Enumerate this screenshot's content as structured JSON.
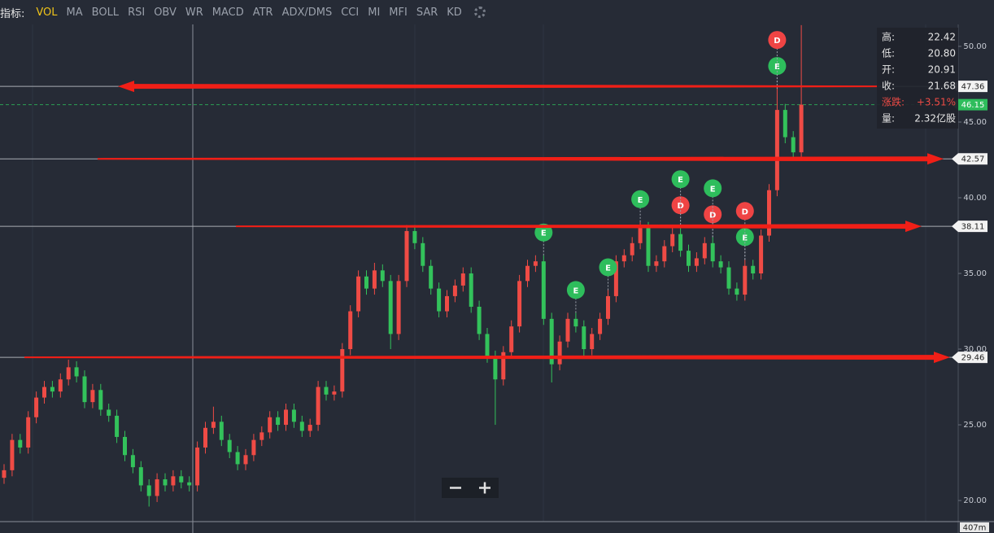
{
  "toolbar": {
    "label": "指标:",
    "indicators": [
      "VOL",
      "MA",
      "BOLL",
      "RSI",
      "OBV",
      "WR",
      "MACD",
      "ATR",
      "ADX/DMS",
      "CCI",
      "MI",
      "MFI",
      "SAR",
      "KD"
    ]
  },
  "chart_data": {
    "type": "candlestick",
    "ylim": [
      18.66,
      51.45
    ],
    "yticks": [
      {
        "value": 20,
        "label": "20.00"
      },
      {
        "value": 25,
        "label": "25.00"
      },
      {
        "value": 30,
        "label": "30.00"
      },
      {
        "value": 35,
        "label": "35.00"
      },
      {
        "value": 40,
        "label": "40.00"
      },
      {
        "value": 45,
        "label": "45.00"
      },
      {
        "value": 50,
        "label": "50.00"
      }
    ],
    "up_color": "#ef4b45",
    "down_color": "#33c25b",
    "candles": {
      "open": [
        21.5,
        22.0,
        24.0,
        23.5,
        25.5,
        26.8,
        27.5,
        27.2,
        28.0,
        28.8,
        28.2,
        26.5,
        27.3,
        26.0,
        25.6,
        24.2,
        23.0,
        22.2,
        21.0,
        20.3,
        21.4,
        21.0,
        21.6,
        21.2,
        21.0,
        23.5,
        24.8,
        25.2,
        24.0,
        23.2,
        22.4,
        23.0,
        24.0,
        24.5,
        25.5,
        25.0,
        26.0,
        25.2,
        24.6,
        25.0,
        27.5,
        27.0,
        27.2,
        30.0,
        32.5,
        34.8,
        34.0,
        35.2,
        34.5,
        31.0,
        34.5,
        37.8,
        37.0,
        35.5,
        34.0,
        32.5,
        33.5,
        34.2,
        35.0,
        32.8,
        31.0,
        29.5,
        28.0,
        29.8,
        31.5,
        34.5,
        35.5,
        35.8,
        32.0,
        29.0,
        30.5,
        32.0,
        31.5,
        30.0,
        31.0,
        32.0,
        33.5,
        35.8,
        36.2,
        37.0,
        38.0,
        35.5,
        35.8,
        36.8,
        37.6,
        36.5,
        35.5,
        36.0,
        37.0,
        35.8,
        35.4,
        34.0,
        33.6,
        35.5,
        35.0,
        37.5,
        40.5,
        45.8,
        44.0,
        43.0
      ],
      "high": [
        22.4,
        24.4,
        24.4,
        25.9,
        27.2,
        27.9,
        27.9,
        28.4,
        29.3,
        29.2,
        28.6,
        27.7,
        27.7,
        26.4,
        26.0,
        24.6,
        23.4,
        22.6,
        21.4,
        21.8,
        21.8,
        22.0,
        22.0,
        21.6,
        23.9,
        25.2,
        26.2,
        25.6,
        24.4,
        23.6,
        23.4,
        24.4,
        24.9,
        25.9,
        25.9,
        26.4,
        26.4,
        25.6,
        25.4,
        27.9,
        27.9,
        27.6,
        30.4,
        32.9,
        35.2,
        35.2,
        35.7,
        35.6,
        34.9,
        34.9,
        38.2,
        38.2,
        37.4,
        35.9,
        34.4,
        33.9,
        34.6,
        35.4,
        35.4,
        33.2,
        31.4,
        29.9,
        30.2,
        31.9,
        34.9,
        35.9,
        36.2,
        36.2,
        32.4,
        30.9,
        32.4,
        32.4,
        31.9,
        31.4,
        32.4,
        33.9,
        36.2,
        36.6,
        37.4,
        38.4,
        38.4,
        36.2,
        37.2,
        38.0,
        38.0,
        36.9,
        36.4,
        37.4,
        37.4,
        36.2,
        35.8,
        34.4,
        35.9,
        35.9,
        37.9,
        40.9,
        47.2,
        46.2,
        44.4,
        51.4
      ],
      "low": [
        21.1,
        21.6,
        23.1,
        23.1,
        25.1,
        26.4,
        26.8,
        26.8,
        27.6,
        27.8,
        26.1,
        26.1,
        25.6,
        25.2,
        23.8,
        22.6,
        21.8,
        20.6,
        19.6,
        19.9,
        20.6,
        20.6,
        20.8,
        20.6,
        20.6,
        23.1,
        24.4,
        23.6,
        22.8,
        22.0,
        22.0,
        22.6,
        23.6,
        24.1,
        24.6,
        24.6,
        24.8,
        24.2,
        24.2,
        24.6,
        26.6,
        26.6,
        26.8,
        29.6,
        32.1,
        33.6,
        33.6,
        34.1,
        30.0,
        30.6,
        34.1,
        36.6,
        35.1,
        33.6,
        32.1,
        32.1,
        33.1,
        33.8,
        32.4,
        30.6,
        29.1,
        25.0,
        27.6,
        29.4,
        31.1,
        34.1,
        35.1,
        31.6,
        27.8,
        28.6,
        30.1,
        31.1,
        29.4,
        29.6,
        30.6,
        31.6,
        33.1,
        35.4,
        35.8,
        36.6,
        35.1,
        35.1,
        35.4,
        36.4,
        36.1,
        35.1,
        35.1,
        35.6,
        35.4,
        35.0,
        33.6,
        33.2,
        33.2,
        34.6,
        34.6,
        37.1,
        40.1,
        43.6,
        42.6,
        42.6
      ],
      "close": [
        22.0,
        24.0,
        23.5,
        25.5,
        26.8,
        27.5,
        27.2,
        28.0,
        28.8,
        28.2,
        26.5,
        27.3,
        26.0,
        25.6,
        24.2,
        23.0,
        22.2,
        21.0,
        20.3,
        21.4,
        21.0,
        21.6,
        21.2,
        21.0,
        23.5,
        24.8,
        25.2,
        24.0,
        23.2,
        22.4,
        23.0,
        24.0,
        24.5,
        25.5,
        25.0,
        26.0,
        25.2,
        24.6,
        25.0,
        27.5,
        27.0,
        27.2,
        30.0,
        32.5,
        34.8,
        34.0,
        35.2,
        34.5,
        31.0,
        34.5,
        37.8,
        37.0,
        35.5,
        34.0,
        32.5,
        33.5,
        34.2,
        35.0,
        32.8,
        31.0,
        29.5,
        28.0,
        29.8,
        31.5,
        34.5,
        35.5,
        35.8,
        32.0,
        29.0,
        30.5,
        32.0,
        31.5,
        30.0,
        31.0,
        32.0,
        33.5,
        35.8,
        36.2,
        37.0,
        38.0,
        35.5,
        35.8,
        36.8,
        37.6,
        36.5,
        35.5,
        36.0,
        37.0,
        35.8,
        35.4,
        34.0,
        33.6,
        35.5,
        35.0,
        37.5,
        40.5,
        45.8,
        44.0,
        43.0,
        46.15
      ]
    },
    "events": [
      null,
      null,
      null,
      null,
      null,
      null,
      null,
      null,
      null,
      null,
      null,
      null,
      null,
      null,
      null,
      null,
      null,
      null,
      null,
      null,
      null,
      null,
      null,
      null,
      null,
      null,
      null,
      null,
      null,
      null,
      null,
      null,
      null,
      null,
      null,
      null,
      null,
      null,
      null,
      null,
      null,
      null,
      null,
      null,
      null,
      null,
      null,
      null,
      null,
      null,
      null,
      null,
      null,
      null,
      null,
      null,
      null,
      null,
      null,
      null,
      null,
      null,
      null,
      null,
      null,
      null,
      null,
      [
        "E"
      ],
      null,
      null,
      null,
      [
        "E"
      ],
      null,
      null,
      null,
      [
        "E"
      ],
      null,
      null,
      null,
      [
        "E"
      ],
      null,
      null,
      null,
      null,
      [
        "D",
        "E"
      ],
      null,
      null,
      null,
      [
        "D",
        "E"
      ],
      null,
      null,
      null,
      [
        "E",
        "D"
      ],
      null,
      null,
      null,
      [
        "E",
        "D"
      ],
      null,
      null,
      null
    ],
    "event_colors": {
      "E": "#2ebd5c",
      "D": "#ef4444"
    },
    "levels": [
      47.36,
      42.57,
      38.11,
      29.46
    ],
    "level_arrows": [
      "left",
      "right",
      "right",
      "right"
    ],
    "arrow_color": "#f01f17",
    "last_price": 46.15,
    "last_price_color": "#2ebd5c",
    "volume_label": "407m",
    "info": [
      {
        "label": "高:",
        "value": "22.42"
      },
      {
        "label": "低:",
        "value": "20.80"
      },
      {
        "label": "开:",
        "value": "20.91"
      },
      {
        "label": "收:",
        "value": "21.68"
      },
      {
        "label": "涨跌:",
        "value": "+3.51%"
      },
      {
        "label": "量:",
        "value": "2.32亿股"
      }
    ]
  }
}
